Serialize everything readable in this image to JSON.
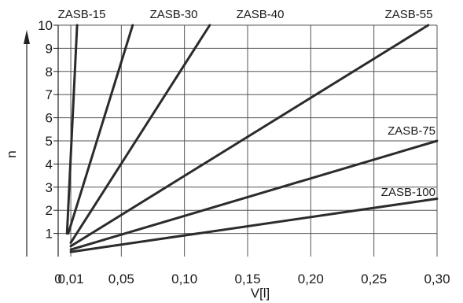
{
  "chart_data": {
    "type": "line",
    "title": "",
    "xlabel": "V[l]",
    "ylabel": "n",
    "x_ticks": [
      "0",
      "0,01",
      "0,05",
      "0,10",
      "0,15",
      "0,20",
      "0,25",
      "0,30"
    ],
    "y_ticks": [
      "1",
      "2",
      "3",
      "4",
      "5",
      "6",
      "7",
      "8",
      "9",
      "10"
    ],
    "xlim": [
      0,
      0.3
    ],
    "ylim": [
      0,
      10
    ],
    "grid": true,
    "legend": "none",
    "series": [
      {
        "name": "ZASB-15",
        "x": [
          0.007,
          0.015
        ],
        "y": [
          1,
          10
        ]
      },
      {
        "name": "ZASB-30",
        "x": [
          0.008,
          0.059
        ],
        "y": [
          1,
          10
        ]
      },
      {
        "name": "ZASB-40",
        "x": [
          0.01,
          0.12
        ],
        "y": [
          0.6,
          10
        ]
      },
      {
        "name": "ZASB-55",
        "x": [
          0.01,
          0.293
        ],
        "y": [
          0.45,
          10
        ]
      },
      {
        "name": "ZASB-75",
        "x": [
          0.01,
          0.3
        ],
        "y": [
          0.3,
          5
        ]
      },
      {
        "name": "ZASB-100",
        "x": [
          0.01,
          0.3
        ],
        "y": [
          0.2,
          2.5
        ]
      }
    ]
  }
}
